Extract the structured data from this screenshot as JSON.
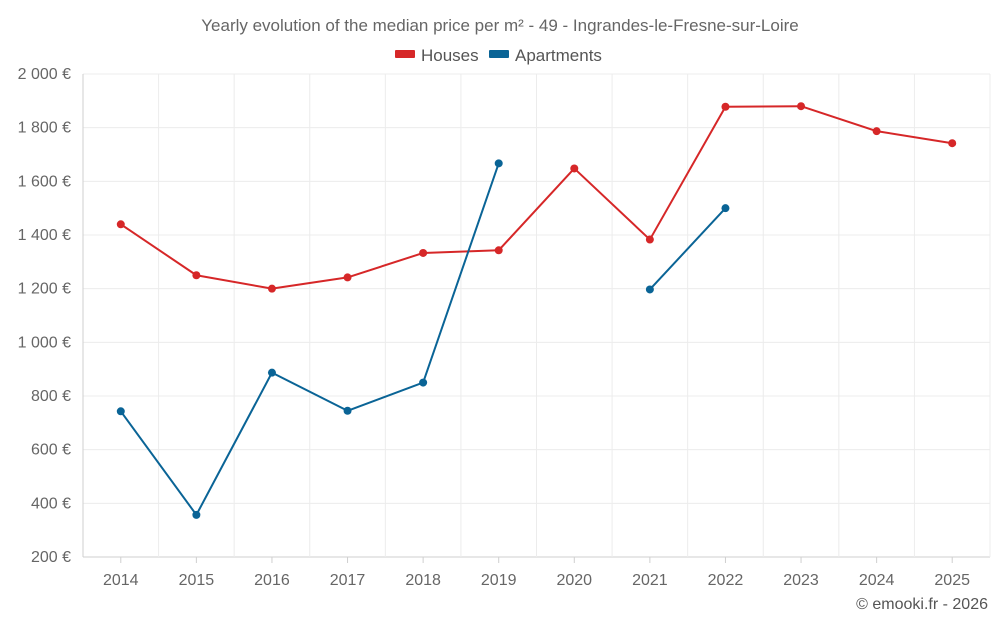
{
  "chart_data": {
    "type": "line",
    "title": "Yearly evolution of the median price per m² - 49 - Ingrandes-le-Fresne-sur-Loire",
    "categories": [
      "2014",
      "2015",
      "2016",
      "2017",
      "2018",
      "2019",
      "2020",
      "2021",
      "2022",
      "2023",
      "2024",
      "2025"
    ],
    "ylim": [
      200,
      2000
    ],
    "yticks": [
      200,
      400,
      600,
      800,
      1000,
      1200,
      1400,
      1600,
      1800,
      2000
    ],
    "ytick_labels": [
      "200 €",
      "400 €",
      "600 €",
      "800 €",
      "1 000 €",
      "1 200 €",
      "1 400 €",
      "1 600 €",
      "1 800 €",
      "2 000 €"
    ],
    "grid": true,
    "legend_position": "top-center",
    "series": [
      {
        "name": "Houses",
        "color": "#d62728",
        "values": [
          1440,
          1250,
          1200,
          1242,
          1333,
          1343,
          1648,
          1383,
          1878,
          1880,
          1787,
          1742
        ]
      },
      {
        "name": "Apartments",
        "color": "#0a6496",
        "values": [
          743,
          357,
          887,
          745,
          850,
          1667,
          null,
          1197,
          1500,
          null,
          null,
          null
        ]
      }
    ]
  },
  "credit": "© emooki.fr - 2026"
}
